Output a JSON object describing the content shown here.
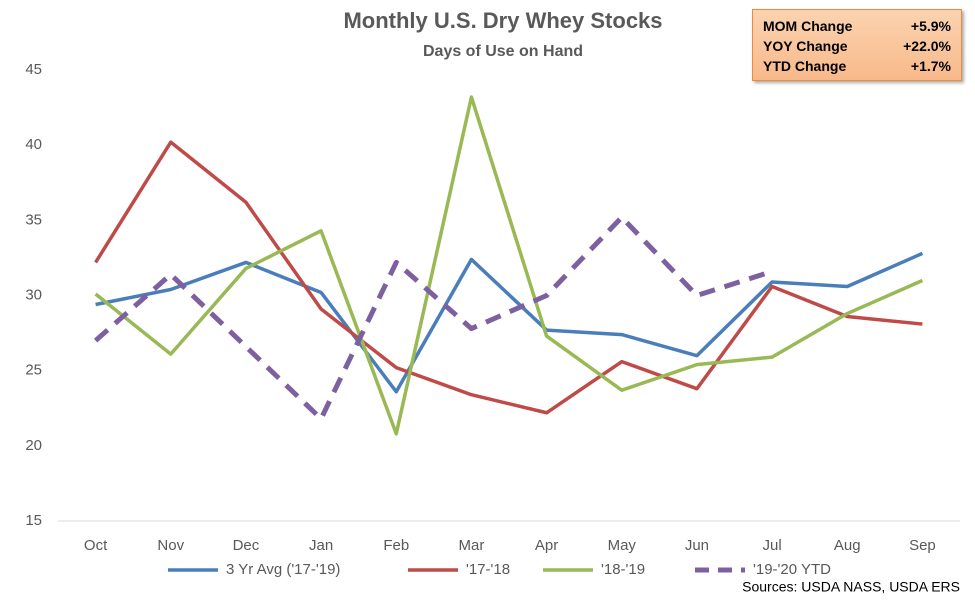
{
  "chart_data": {
    "type": "line",
    "title": "Monthly U.S. Dry Whey Stocks",
    "subtitle": "Days of Use on Hand",
    "categories": [
      "Oct",
      "Nov",
      "Dec",
      "Jan",
      "Feb",
      "Mar",
      "Apr",
      "May",
      "Jun",
      "Jul",
      "Aug",
      "Sep"
    ],
    "series": [
      {
        "name": "3 Yr Avg ('17-'19)",
        "color": "#4a7ebb",
        "dashed": false,
        "values": [
          29.4,
          30.4,
          32.2,
          30.2,
          23.6,
          32.4,
          27.7,
          27.4,
          26.0,
          30.9,
          30.6,
          32.8
        ]
      },
      {
        "name": "'17-'18",
        "color": "#be4b48",
        "dashed": false,
        "values": [
          32.2,
          40.2,
          36.2,
          29.1,
          25.2,
          23.4,
          22.2,
          25.6,
          23.8,
          30.6,
          28.6,
          28.1
        ]
      },
      {
        "name": "'18-'19",
        "color": "#98b954",
        "dashed": false,
        "values": [
          30.1,
          26.1,
          31.8,
          34.3,
          20.8,
          43.2,
          27.3,
          23.7,
          25.4,
          25.9,
          28.8,
          31.0
        ]
      },
      {
        "name": "'19-'20 YTD",
        "color": "#7d60a0",
        "dashed": true,
        "values": [
          27.0,
          31.4,
          26.6,
          21.8,
          32.2,
          27.8,
          30.0,
          35.2,
          30.0,
          31.6,
          null,
          null
        ]
      }
    ],
    "ylim": [
      15,
      45
    ],
    "yticks": [
      15,
      20,
      25,
      30,
      35,
      40,
      45
    ],
    "grid": false,
    "legend": "bottom",
    "source": "Sources: USDA NASS, USDA ERS"
  },
  "info_box": {
    "rows": [
      {
        "label": "MOM Change",
        "value": "+5.9%"
      },
      {
        "label": "YOY Change",
        "value": "+22.0%"
      },
      {
        "label": "YTD Change",
        "value": "+1.7%"
      }
    ]
  }
}
